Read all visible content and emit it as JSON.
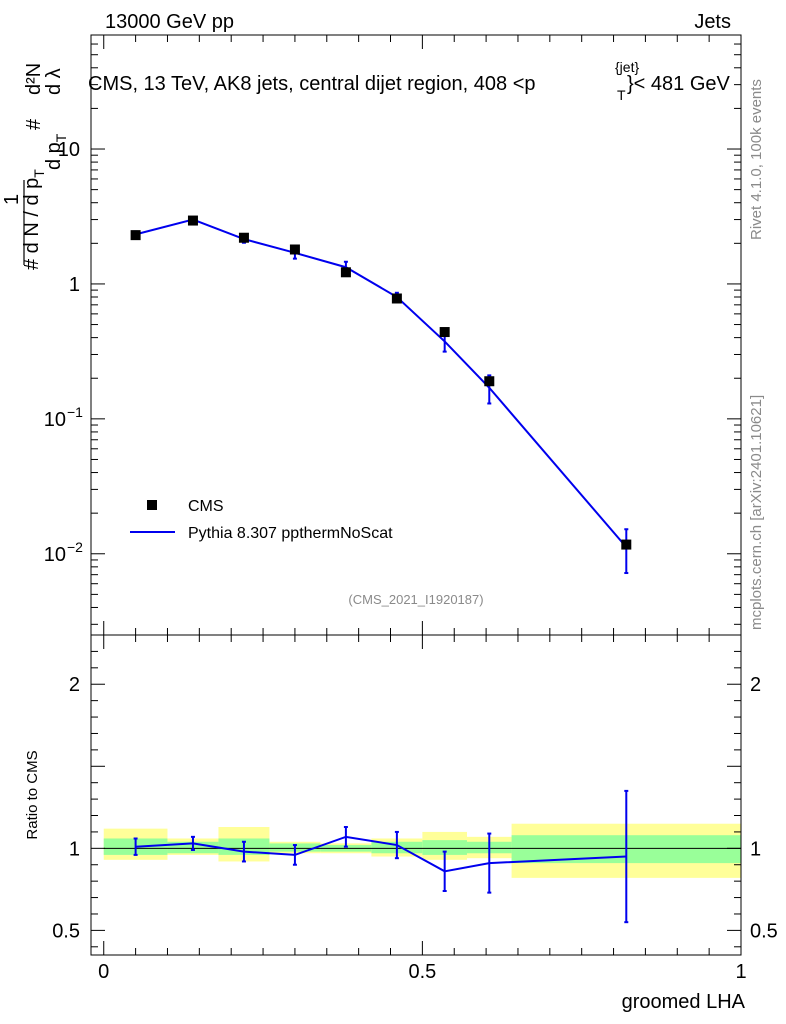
{
  "header": {
    "left": "13000 GeV pp",
    "right": "Jets"
  },
  "side": {
    "rivet": "Rivet 4.1.0,  100k events",
    "mcplots": "mcplots.cern.ch [arXiv:2401.10621]"
  },
  "colors": {
    "mc": "#0000ee",
    "data": "#000000",
    "band_inner": "#99ff99",
    "band_outer": "#ffff99"
  },
  "chart_data": [
    {
      "type": "line",
      "title": "CMS, 13 TeV, AK8 jets, central dijet region, 408 <p",
      "title_sup": "{jet}",
      "title_sub": "T",
      "title_tail": "}< 481 GeV",
      "ylabel": "1/dN/dpT d²N/dpT dλ",
      "yscale": "log",
      "ylim": [
        0.0025,
        70
      ],
      "xlim": [
        -0.02,
        1.0
      ],
      "yticks": [
        {
          "value": 10,
          "label": "10"
        },
        {
          "value": 1,
          "label": "1"
        },
        {
          "value": 0.1,
          "label": "10",
          "exp": "−1"
        },
        {
          "value": 0.01,
          "label": "10",
          "exp": "−2"
        }
      ],
      "watermark": "(CMS_2021_I1920187)",
      "legend": [
        {
          "label": "CMS",
          "kind": "marker"
        },
        {
          "label": "Pythia 8.307 ppthermNoScat",
          "kind": "line"
        }
      ],
      "series": [
        {
          "name": "CMS",
          "x": [
            0.05,
            0.14,
            0.22,
            0.3,
            0.38,
            0.46,
            0.535,
            0.605,
            0.82
          ],
          "xerr": [
            0.05,
            0.04,
            0.04,
            0.04,
            0.04,
            0.04,
            0.035,
            0.035,
            0.18
          ],
          "y": [
            2.3,
            2.95,
            2.2,
            1.8,
            1.22,
            0.78,
            0.44,
            0.19,
            0.0117
          ]
        },
        {
          "name": "Pythia 8.307 ppthermNoScat",
          "x": [
            0.05,
            0.14,
            0.22,
            0.3,
            0.38,
            0.46,
            0.535,
            0.605,
            0.82
          ],
          "y": [
            2.33,
            3.0,
            2.15,
            1.7,
            1.33,
            0.8,
            0.375,
            0.17,
            0.0112
          ],
          "yerr": [
            0.12,
            0.13,
            0.13,
            0.16,
            0.13,
            0.06,
            0.06,
            0.04,
            0.004
          ]
        }
      ]
    },
    {
      "type": "line",
      "ylabel": "Ratio to CMS",
      "xlabel": "groomed LHA",
      "ylim": [
        0.35,
        2.3
      ],
      "xlim": [
        -0.02,
        1.0
      ],
      "yticks": [
        {
          "value": 2,
          "label": "2"
        },
        {
          "value": 1,
          "label": "1"
        },
        {
          "value": 0.5,
          "label": "0.5"
        }
      ],
      "xticks": [
        {
          "value": 0,
          "label": "0"
        },
        {
          "value": 0.5,
          "label": "0.5"
        },
        {
          "value": 1,
          "label": "1"
        }
      ],
      "bands": [
        {
          "x0": 0.0,
          "x1": 0.1,
          "inner": [
            0.96,
            1.06
          ],
          "outer": [
            0.93,
            1.12
          ]
        },
        {
          "x0": 0.1,
          "x1": 0.18,
          "inner": [
            0.97,
            1.04
          ],
          "outer": [
            0.96,
            1.06
          ]
        },
        {
          "x0": 0.18,
          "x1": 0.26,
          "inner": [
            0.96,
            1.06
          ],
          "outer": [
            0.92,
            1.13
          ]
        },
        {
          "x0": 0.26,
          "x1": 0.34,
          "inner": [
            0.98,
            1.03
          ],
          "outer": [
            0.97,
            1.04
          ]
        },
        {
          "x0": 0.34,
          "x1": 0.42,
          "inner": [
            0.98,
            1.02
          ],
          "outer": [
            0.97,
            1.03
          ]
        },
        {
          "x0": 0.42,
          "x1": 0.5,
          "inner": [
            0.97,
            1.04
          ],
          "outer": [
            0.95,
            1.06
          ]
        },
        {
          "x0": 0.5,
          "x1": 0.57,
          "inner": [
            0.96,
            1.05
          ],
          "outer": [
            0.93,
            1.1
          ]
        },
        {
          "x0": 0.57,
          "x1": 0.64,
          "inner": [
            0.97,
            1.04
          ],
          "outer": [
            0.94,
            1.07
          ]
        },
        {
          "x0": 0.64,
          "x1": 1.0,
          "inner": [
            0.91,
            1.08
          ],
          "outer": [
            0.82,
            1.15
          ]
        }
      ],
      "series": [
        {
          "name": "Pythia 8.307 ppthermNoScat / CMS",
          "x": [
            0.05,
            0.14,
            0.22,
            0.3,
            0.38,
            0.46,
            0.535,
            0.605,
            0.82
          ],
          "y": [
            1.01,
            1.03,
            0.98,
            0.96,
            1.07,
            1.02,
            0.86,
            0.91,
            0.95
          ],
          "yerr": [
            0.05,
            0.04,
            0.06,
            0.06,
            0.06,
            0.08,
            0.12,
            0.18,
            0.4
          ]
        }
      ]
    }
  ]
}
